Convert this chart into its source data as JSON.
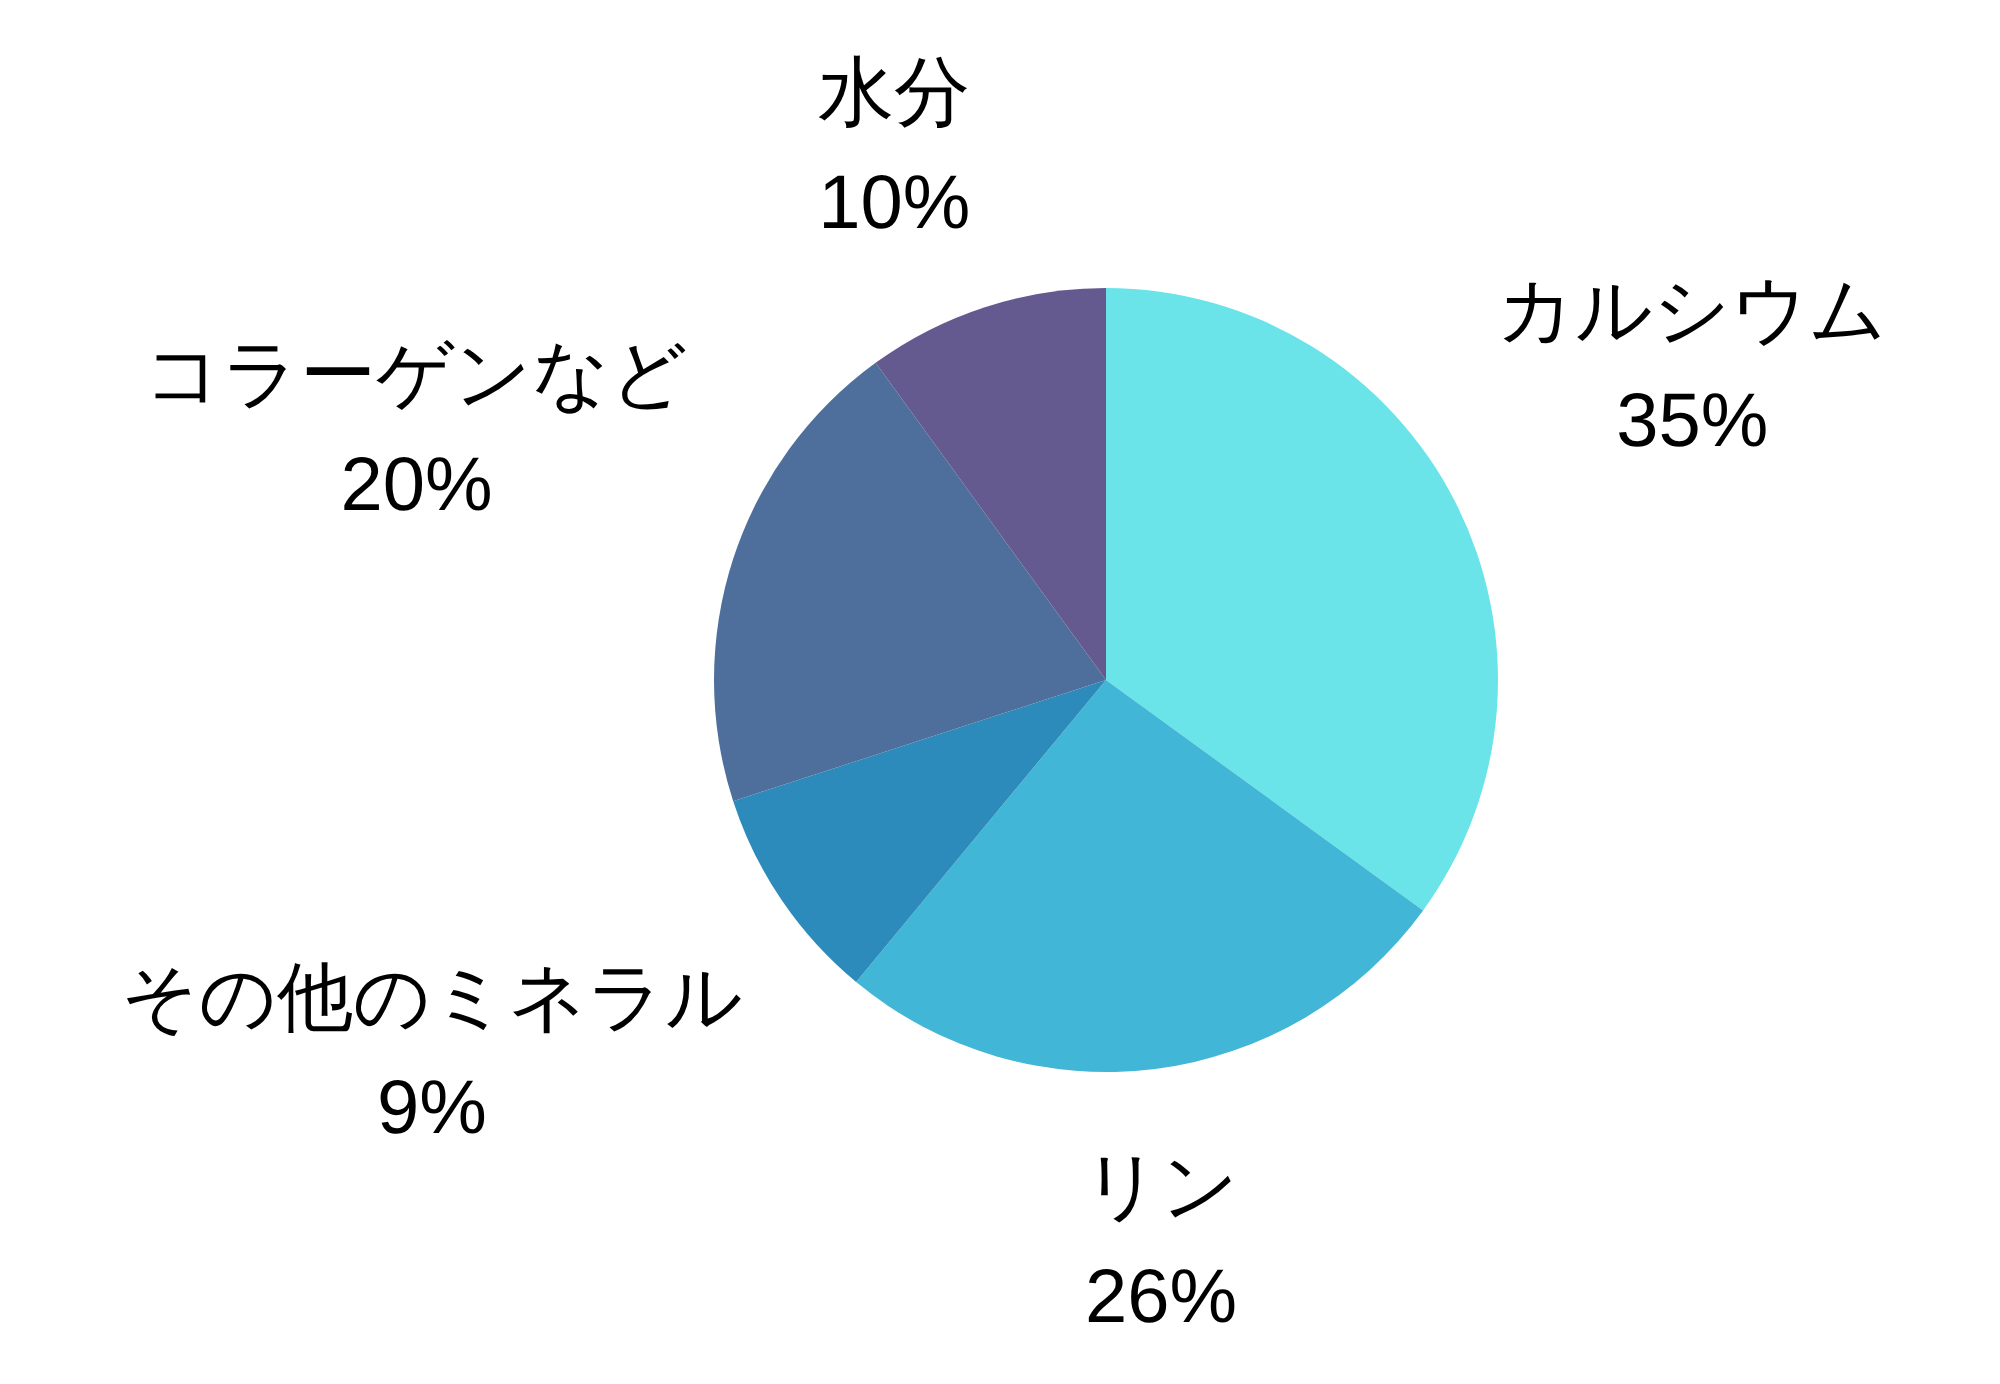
{
  "chart_data": {
    "type": "pie",
    "categories": [
      "カルシウム",
      "リン",
      "その他のミネラル",
      "コラーゲンなど",
      "水分"
    ],
    "values": [
      35,
      26,
      9,
      20,
      10
    ],
    "value_labels": [
      "35%",
      "26%",
      "9%",
      "20%",
      "10%"
    ],
    "colors": [
      "#6ae4e8",
      "#42b6d6",
      "#2c8bbb",
      "#4e6f9b",
      "#645a8f"
    ]
  }
}
